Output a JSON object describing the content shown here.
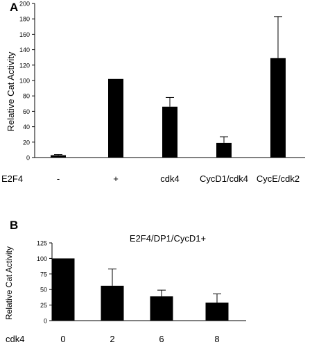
{
  "chart_data": [
    {
      "panel_label": "A",
      "type": "bar",
      "title": "",
      "xlabel": "E2F4",
      "ylabel": "Relative Cat Activity",
      "categories": [
        "-",
        "+",
        "cdk4",
        "CycD1/cdk4",
        "CycE/cdk2"
      ],
      "values": [
        3,
        102,
        66,
        19,
        129
      ],
      "errors": [
        1,
        0,
        12,
        8,
        54
      ],
      "ylim": [
        0,
        200
      ],
      "yticks": [
        0,
        20,
        40,
        60,
        80,
        100,
        120,
        140,
        160,
        180,
        200
      ],
      "bar_color": "#000000",
      "grid": false
    },
    {
      "panel_label": "B",
      "type": "bar",
      "title": "E2F4/DP1/CycD1+",
      "xlabel": "cdk4",
      "ylabel": "Relative Cat Activity",
      "categories": [
        "0",
        "2",
        "6",
        "8"
      ],
      "values": [
        100,
        56,
        39,
        29
      ],
      "errors": [
        0,
        27,
        10,
        14
      ],
      "ylim": [
        0,
        125
      ],
      "yticks": [
        0,
        25,
        50,
        75,
        100,
        125
      ],
      "bar_color": "#000000",
      "grid": false
    }
  ]
}
